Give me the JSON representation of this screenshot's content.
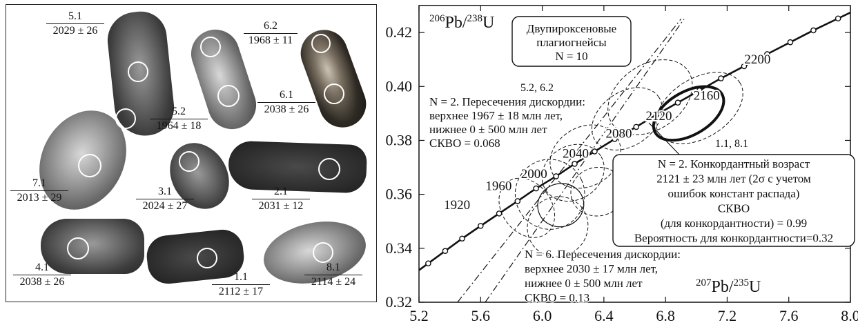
{
  "grain_labels": [
    {
      "num": "5.1",
      "age": "2029 ± 26"
    },
    {
      "num": "6.2",
      "age": "1968 ± 11"
    },
    {
      "num": "5.2",
      "age": "1964 ± 18"
    },
    {
      "num": "6.1",
      "age": "2038 ± 26"
    },
    {
      "num": "7.1",
      "age": "2013 ± 29"
    },
    {
      "num": "3.1",
      "age": "2024 ± 27"
    },
    {
      "num": "2.1",
      "age": "2031 ± 12"
    },
    {
      "num": "4.1",
      "age": "2038 ± 26"
    },
    {
      "num": "1.1",
      "age": "2112 ± 17"
    },
    {
      "num": "8.1",
      "age": "2114 ± 24"
    }
  ],
  "chart_data": {
    "type": "scatter",
    "ylabel_num": "206",
    "ylabel_el1": "Pb/",
    "ylabel_num2": "238",
    "ylabel_el2": "U",
    "xlabel_num": "207",
    "xlabel_el1": "Pb/",
    "xlabel_num2": "235",
    "xlabel_el2": "U",
    "xlim": [
      5.2,
      8.0
    ],
    "ylim": [
      0.32,
      0.43
    ],
    "x_ticks": [
      "5.2",
      "5.6",
      "6.0",
      "6.4",
      "6.8",
      "7.2",
      "7.6",
      "8.0"
    ],
    "y_ticks": [
      "0.32",
      "0.34",
      "0.36",
      "0.38",
      "0.40",
      "0.42"
    ],
    "concordia_age_labels": [
      "1920",
      "1960",
      "2000",
      "2040",
      "2080",
      "2120",
      "2160",
      "2200"
    ],
    "concordia_points_x": [
      5.26,
      5.37,
      5.48,
      5.6,
      5.72,
      5.84,
      5.96,
      6.09,
      6.21,
      6.34,
      6.47,
      6.61,
      6.74,
      6.88,
      7.02,
      7.16,
      7.31,
      7.46,
      7.61,
      7.76,
      7.92
    ],
    "concordia_points_y": [
      0.3344,
      0.339,
      0.3436,
      0.3483,
      0.3529,
      0.3575,
      0.3622,
      0.3667,
      0.3713,
      0.3759,
      0.3805,
      0.385,
      0.3895,
      0.394,
      0.3985,
      0.403,
      0.4075,
      0.412,
      0.4164,
      0.4208,
      0.4252
    ],
    "ellipses": [
      {
        "cx": 6.95,
        "cy": 0.39,
        "rx": 0.5,
        "ry": 0.008,
        "angle": -30,
        "style": "bold"
      },
      {
        "cx": 7.02,
        "cy": 0.392,
        "rx": 0.62,
        "ry": 0.011,
        "angle": -32,
        "style": "dashed"
      },
      {
        "cx": 6.7,
        "cy": 0.396,
        "rx": 0.6,
        "ry": 0.012,
        "angle": -35,
        "style": "dashed"
      },
      {
        "cx": 6.55,
        "cy": 0.388,
        "rx": 0.5,
        "ry": 0.01,
        "angle": -35,
        "style": "dashed"
      },
      {
        "cx": 6.2,
        "cy": 0.368,
        "rx": 0.42,
        "ry": 0.01,
        "angle": -30,
        "style": "dashed"
      },
      {
        "cx": 6.05,
        "cy": 0.36,
        "rx": 0.45,
        "ry": 0.013,
        "angle": -25,
        "style": "dashed"
      },
      {
        "cx": 6.28,
        "cy": 0.374,
        "rx": 0.48,
        "ry": 0.011,
        "angle": -30,
        "style": "dashed"
      },
      {
        "cx": 6.12,
        "cy": 0.356,
        "rx": 0.3,
        "ry": 0.008,
        "angle": -15,
        "style": "solid"
      },
      {
        "cx": 6.36,
        "cy": 0.361,
        "rx": 0.35,
        "ry": 0.009,
        "angle": -10,
        "style": "dashed"
      },
      {
        "cx": 6.1,
        "cy": 0.348,
        "rx": 0.4,
        "ry": 0.011,
        "angle": -40,
        "style": "dashed"
      },
      {
        "cx": 5.9,
        "cy": 0.355,
        "rx": 0.32,
        "ry": 0.012,
        "angle": -38,
        "style": "dashed"
      }
    ],
    "discordia_lines": [
      {
        "x1": 5.45,
        "y1": 0.32,
        "x2": 6.9,
        "y2": 0.425,
        "style": "dash-dot"
      },
      {
        "x1": 5.63,
        "y1": 0.32,
        "x2": 6.92,
        "y2": 0.425,
        "style": "dash-dot"
      }
    ],
    "annotations": {
      "sample_box": [
        "Двупироксеновые",
        "плагиогнейсы",
        "N = 10"
      ],
      "disc_52_62": [
        "5.2, 6.2",
        "N = 2. Пересечения дискордии:",
        "верхнее 1967 ± 18 млн лет,",
        "нижнее 0 ± 500 млн лет",
        "СКВО = 0.068"
      ],
      "label_11_81": "1.1, 8.1",
      "concordant_box": [
        "N = 2. Конкордантный возраст",
        "2121 ± 23 млн лет (2σ с учетом",
        "ошибок констант распада)",
        "СКВО",
        "(для конкордантности) = 0.99",
        "Вероятность для конкордантности=0.32"
      ],
      "disc_n6": [
        "N = 6. Пересечения дискордии:",
        "верхнее 2030 ± 17 млн лет,",
        "нижнее 0 ± 500 млн лет",
        "СКВО = 0.13"
      ]
    }
  }
}
